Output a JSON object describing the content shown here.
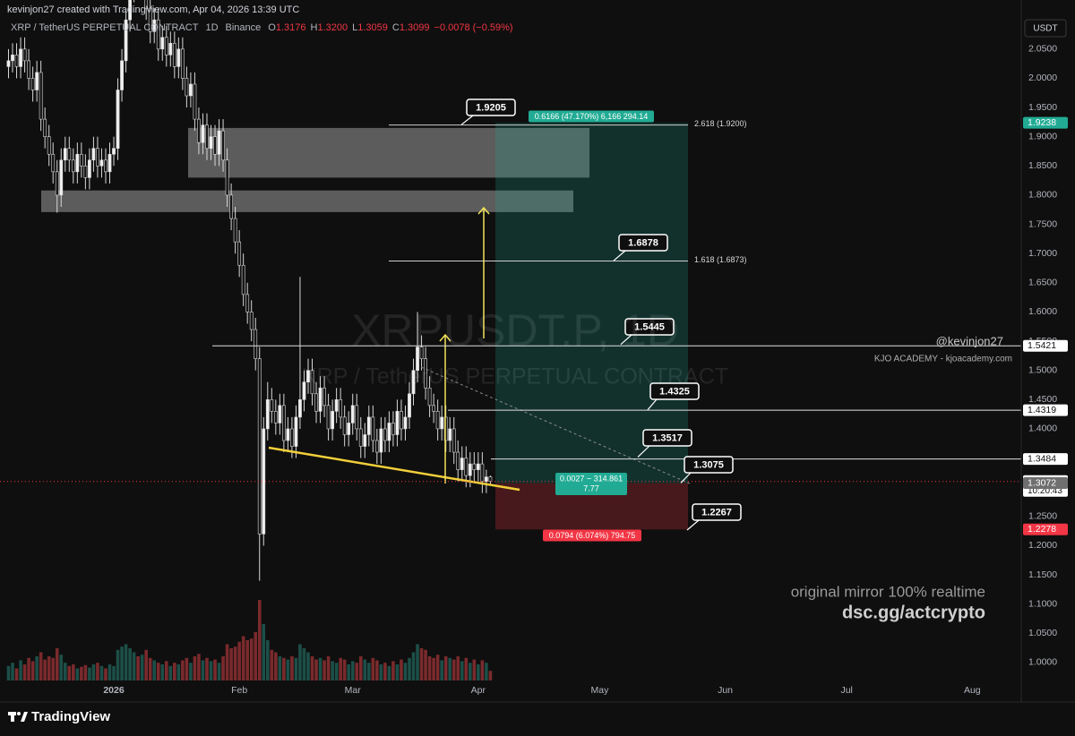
{
  "header": {
    "credit": "kevinjon27 created with TradingView.com, Apr 04, 2026 13:39 UTC",
    "symbol": "XRP / TetherUS PERPETUAL CONTRACT",
    "interval": "1D",
    "exchange": "Binance",
    "ohlc": [
      "O",
      "1.3176",
      "H",
      "1.3200",
      "L",
      "1.3059",
      "C",
      "1.3099"
    ],
    "change": "−0.0078 (−0.59%)"
  },
  "watermark": {
    "ticker": "XRPUSDT.P, 1D",
    "name": "XRP / TetherUS PERPETUAL CONTRACT"
  },
  "currency": "USDT",
  "brand": {
    "handle": "@kevinjon27",
    "academy": "KJO ACADEMY - kjoacademy.com",
    "promo": "original mirror 100% realtime",
    "link": "dsc.gg/actcrypto"
  },
  "footer": {
    "logo": "TradingView"
  },
  "chart_data": {
    "type": "candlestick",
    "open": [
      2.02,
      2.03,
      2.04,
      2.02,
      2.05,
      2.03,
      2.0,
      1.98,
      2.01,
      1.93,
      1.9,
      1.87,
      1.84,
      1.8,
      1.86,
      1.88,
      1.86,
      1.84,
      1.87,
      1.85,
      1.83,
      1.86,
      1.88,
      1.85,
      1.86,
      1.84,
      1.87,
      1.88,
      1.98,
      2.03,
      2.1,
      2.15,
      2.2,
      2.18,
      2.22,
      2.12,
      2.08,
      2.1,
      2.05,
      2.07,
      2.04,
      2.06,
      2.02,
      2.05,
      2.0,
      1.97,
      1.99,
      1.93,
      1.89,
      1.92,
      1.88,
      1.9,
      1.87,
      1.91,
      1.86,
      1.8,
      1.76,
      1.72,
      1.68,
      1.63,
      1.6,
      1.57,
      1.52,
      1.22,
      1.4,
      1.45,
      1.43,
      1.41,
      1.44,
      1.38,
      1.4,
      1.37,
      1.42,
      1.45,
      1.48,
      1.5,
      1.46,
      1.43,
      1.47,
      1.44,
      1.4,
      1.43,
      1.45,
      1.42,
      1.39,
      1.41,
      1.44,
      1.4,
      1.37,
      1.39,
      1.42,
      1.38,
      1.36,
      1.4,
      1.38,
      1.41,
      1.39,
      1.43,
      1.4,
      1.42,
      1.46,
      1.5,
      1.54,
      1.52,
      1.47,
      1.44,
      1.43,
      1.4,
      1.42,
      1.38,
      1.4,
      1.36,
      1.33,
      1.35,
      1.32,
      1.34,
      1.33,
      1.34,
      1.31,
      1.3176
    ],
    "high": [
      2.05,
      2.06,
      2.06,
      2.07,
      2.07,
      2.05,
      2.02,
      2.03,
      2.03,
      1.95,
      1.92,
      1.89,
      1.86,
      1.88,
      1.9,
      1.9,
      1.88,
      1.89,
      1.89,
      1.87,
      1.88,
      1.9,
      1.9,
      1.88,
      1.88,
      1.89,
      1.9,
      2.0,
      2.05,
      2.12,
      2.18,
      2.23,
      2.24,
      2.25,
      2.24,
      2.14,
      2.12,
      2.12,
      2.09,
      2.09,
      2.08,
      2.08,
      2.07,
      2.07,
      2.02,
      2.01,
      2.01,
      1.95,
      1.94,
      1.94,
      1.92,
      1.92,
      1.93,
      1.93,
      1.88,
      1.82,
      1.78,
      1.74,
      1.7,
      1.65,
      1.62,
      1.59,
      1.54,
      1.42,
      1.48,
      1.47,
      1.45,
      1.46,
      1.46,
      1.42,
      1.42,
      1.44,
      1.66,
      1.5,
      1.52,
      1.52,
      1.48,
      1.49,
      1.49,
      1.46,
      1.45,
      1.47,
      1.47,
      1.44,
      1.43,
      1.46,
      1.46,
      1.42,
      1.41,
      1.44,
      1.44,
      1.4,
      1.42,
      1.42,
      1.43,
      1.43,
      1.45,
      1.45,
      1.44,
      1.48,
      1.52,
      1.6,
      1.56,
      1.54,
      1.49,
      1.46,
      1.45,
      1.44,
      1.44,
      1.42,
      1.42,
      1.38,
      1.37,
      1.37,
      1.36,
      1.36,
      1.36,
      1.36,
      1.33,
      1.32
    ],
    "low": [
      2.0,
      2.01,
      2.0,
      2.0,
      2.01,
      1.98,
      1.96,
      1.96,
      1.91,
      1.88,
      1.85,
      1.82,
      1.77,
      1.78,
      1.84,
      1.84,
      1.82,
      1.82,
      1.83,
      1.81,
      1.81,
      1.84,
      1.83,
      1.83,
      1.82,
      1.82,
      1.85,
      1.86,
      1.96,
      2.01,
      2.08,
      2.13,
      2.15,
      2.16,
      2.1,
      2.06,
      2.06,
      2.03,
      2.03,
      2.02,
      2.02,
      2.0,
      2.0,
      1.98,
      1.95,
      1.95,
      1.91,
      1.87,
      1.87,
      1.86,
      1.86,
      1.85,
      1.85,
      1.84,
      1.78,
      1.74,
      1.7,
      1.66,
      1.61,
      1.58,
      1.55,
      1.5,
      1.14,
      1.2,
      1.38,
      1.41,
      1.39,
      1.39,
      1.36,
      1.36,
      1.35,
      1.35,
      1.4,
      1.43,
      1.46,
      1.44,
      1.41,
      1.41,
      1.42,
      1.38,
      1.38,
      1.41,
      1.4,
      1.37,
      1.37,
      1.39,
      1.38,
      1.35,
      1.35,
      1.37,
      1.36,
      1.34,
      1.34,
      1.36,
      1.36,
      1.37,
      1.37,
      1.38,
      1.38,
      1.4,
      1.44,
      1.48,
      1.5,
      1.45,
      1.42,
      1.41,
      1.38,
      1.38,
      1.36,
      1.36,
      1.34,
      1.31,
      1.31,
      1.3,
      1.3,
      1.31,
      1.31,
      1.29,
      1.29,
      1.3059
    ],
    "close": [
      2.03,
      2.04,
      2.02,
      2.05,
      2.03,
      2.0,
      1.98,
      2.01,
      1.93,
      1.9,
      1.87,
      1.84,
      1.8,
      1.86,
      1.88,
      1.86,
      1.84,
      1.87,
      1.85,
      1.83,
      1.86,
      1.88,
      1.85,
      1.86,
      1.84,
      1.87,
      1.88,
      1.98,
      2.03,
      2.1,
      2.15,
      2.2,
      2.18,
      2.22,
      2.12,
      2.08,
      2.1,
      2.05,
      2.07,
      2.04,
      2.06,
      2.02,
      2.05,
      2.0,
      1.97,
      1.99,
      1.93,
      1.89,
      1.92,
      1.88,
      1.9,
      1.87,
      1.91,
      1.86,
      1.8,
      1.76,
      1.72,
      1.68,
      1.63,
      1.6,
      1.57,
      1.52,
      1.22,
      1.4,
      1.45,
      1.43,
      1.41,
      1.44,
      1.38,
      1.4,
      1.37,
      1.42,
      1.45,
      1.48,
      1.5,
      1.46,
      1.43,
      1.47,
      1.44,
      1.4,
      1.43,
      1.45,
      1.42,
      1.39,
      1.41,
      1.44,
      1.4,
      1.37,
      1.39,
      1.42,
      1.38,
      1.36,
      1.4,
      1.38,
      1.41,
      1.39,
      1.43,
      1.4,
      1.42,
      1.46,
      1.5,
      1.54,
      1.52,
      1.47,
      1.44,
      1.43,
      1.4,
      1.42,
      1.38,
      1.4,
      1.36,
      1.33,
      1.35,
      1.32,
      1.34,
      1.33,
      1.34,
      1.31,
      1.3176,
      1.3099
    ],
    "volume": [
      18,
      22,
      15,
      25,
      20,
      28,
      24,
      30,
      35,
      26,
      30,
      28,
      40,
      32,
      22,
      18,
      20,
      15,
      17,
      19,
      16,
      20,
      22,
      18,
      15,
      20,
      18,
      38,
      42,
      45,
      40,
      35,
      30,
      32,
      38,
      28,
      25,
      22,
      20,
      24,
      18,
      22,
      20,
      25,
      28,
      22,
      30,
      33,
      25,
      28,
      24,
      26,
      22,
      30,
      45,
      40,
      42,
      48,
      55,
      50,
      52,
      60,
      100,
      70,
      50,
      38,
      35,
      30,
      28,
      26,
      30,
      28,
      45,
      40,
      35,
      30,
      26,
      28,
      25,
      30,
      24,
      22,
      28,
      26,
      20,
      24,
      22,
      30,
      26,
      22,
      28,
      25,
      20,
      22,
      18,
      24,
      20,
      26,
      22,
      28,
      35,
      45,
      40,
      38,
      30,
      28,
      32,
      25,
      30,
      28,
      26,
      30,
      24,
      28,
      22,
      26,
      20,
      25,
      22,
      12
    ],
    "up_color": "#f0f0f0",
    "down_color": "#161616",
    "volume_up_color": "#1c4f48",
    "volume_down_color": "#7a2a2c",
    "xlim": [
      -2.1,
      250.1
    ],
    "xticks": [
      {
        "value": 26,
        "label": "2026"
      },
      {
        "value": 57,
        "label": "Feb"
      },
      {
        "value": 85,
        "label": "Mar"
      },
      {
        "value": 116,
        "label": "Apr"
      },
      {
        "value": 146,
        "label": "May"
      },
      {
        "value": 177,
        "label": "Jun"
      },
      {
        "value": 207,
        "label": "Jul"
      },
      {
        "value": 238,
        "label": "Aug"
      }
    ],
    "ylim": [
      0.957,
      2.134
    ],
    "yticks": [
      {
        "value": 2.05,
        "label": "2.0500"
      },
      {
        "value": 2.0,
        "label": "2.0000"
      },
      {
        "value": 1.95,
        "label": "1.9500"
      },
      {
        "value": 1.9,
        "label": "1.9000"
      },
      {
        "value": 1.85,
        "label": "1.8500"
      },
      {
        "value": 1.8,
        "label": "1.8000"
      },
      {
        "value": 1.75,
        "label": "1.7500"
      },
      {
        "value": 1.7,
        "label": "1.7000"
      },
      {
        "value": 1.65,
        "label": "1.6500"
      },
      {
        "value": 1.6,
        "label": "1.6000"
      },
      {
        "value": 1.55,
        "label": "1.5500"
      },
      {
        "value": 1.5,
        "label": "1.5000"
      },
      {
        "value": 1.45,
        "label": "1.4500"
      },
      {
        "value": 1.4,
        "label": "1.4000"
      },
      {
        "value": 1.35,
        "label": "1.3500"
      },
      {
        "value": 1.3,
        "label": "1.3000"
      },
      {
        "value": 1.25,
        "label": "1.2500"
      },
      {
        "value": 1.2,
        "label": "1.2000"
      },
      {
        "value": 1.15,
        "label": "1.1500"
      },
      {
        "value": 1.1,
        "label": "1.1000"
      },
      {
        "value": 1.05,
        "label": "1.0500"
      },
      {
        "value": 1.0,
        "label": "1.0000"
      }
    ],
    "grid": false,
    "price_markers": [
      {
        "value": 1.9238,
        "label": "1.9238",
        "color": "#22ab94"
      },
      {
        "value": 1.5421,
        "label": "1.5421",
        "color": "#ffffff"
      },
      {
        "value": 1.4319,
        "label": "1.4319",
        "color": "#ffffff"
      },
      {
        "value": 1.3484,
        "label": "1.3484",
        "color": "#ffffff"
      },
      {
        "value": 1.3099,
        "label": "1.3099",
        "countdown": "10:20:43",
        "color": "#ffffff"
      },
      {
        "value": 1.3072,
        "label": "1.3072",
        "color": "#6f6f6f"
      },
      {
        "value": 1.2278,
        "label": "1.2278",
        "color": "#f23645"
      }
    ],
    "callouts": [
      1.9205,
      1.6878,
      1.5445,
      1.4325,
      1.3517,
      1.3075,
      1.2267
    ],
    "fib_levels": [
      {
        "value": 1.92,
        "label": "2.618 (1.9200)"
      },
      {
        "value": 1.6873,
        "label": "1.618 (1.6873)"
      }
    ],
    "zones": [
      {
        "top": 1.915,
        "bottom": 1.83
      },
      {
        "top": 1.808,
        "bottom": 1.771
      }
    ],
    "position": {
      "target": 1.9238,
      "entry": 1.3072,
      "stop": 1.2278,
      "target_label": "0.6166 (47.170%) 6,166 294.14",
      "entry_label": "0.0027 − 314.861",
      "entry_sublabel": "7.77",
      "stop_label": "0.0794 (6.074%) 794.75"
    }
  }
}
